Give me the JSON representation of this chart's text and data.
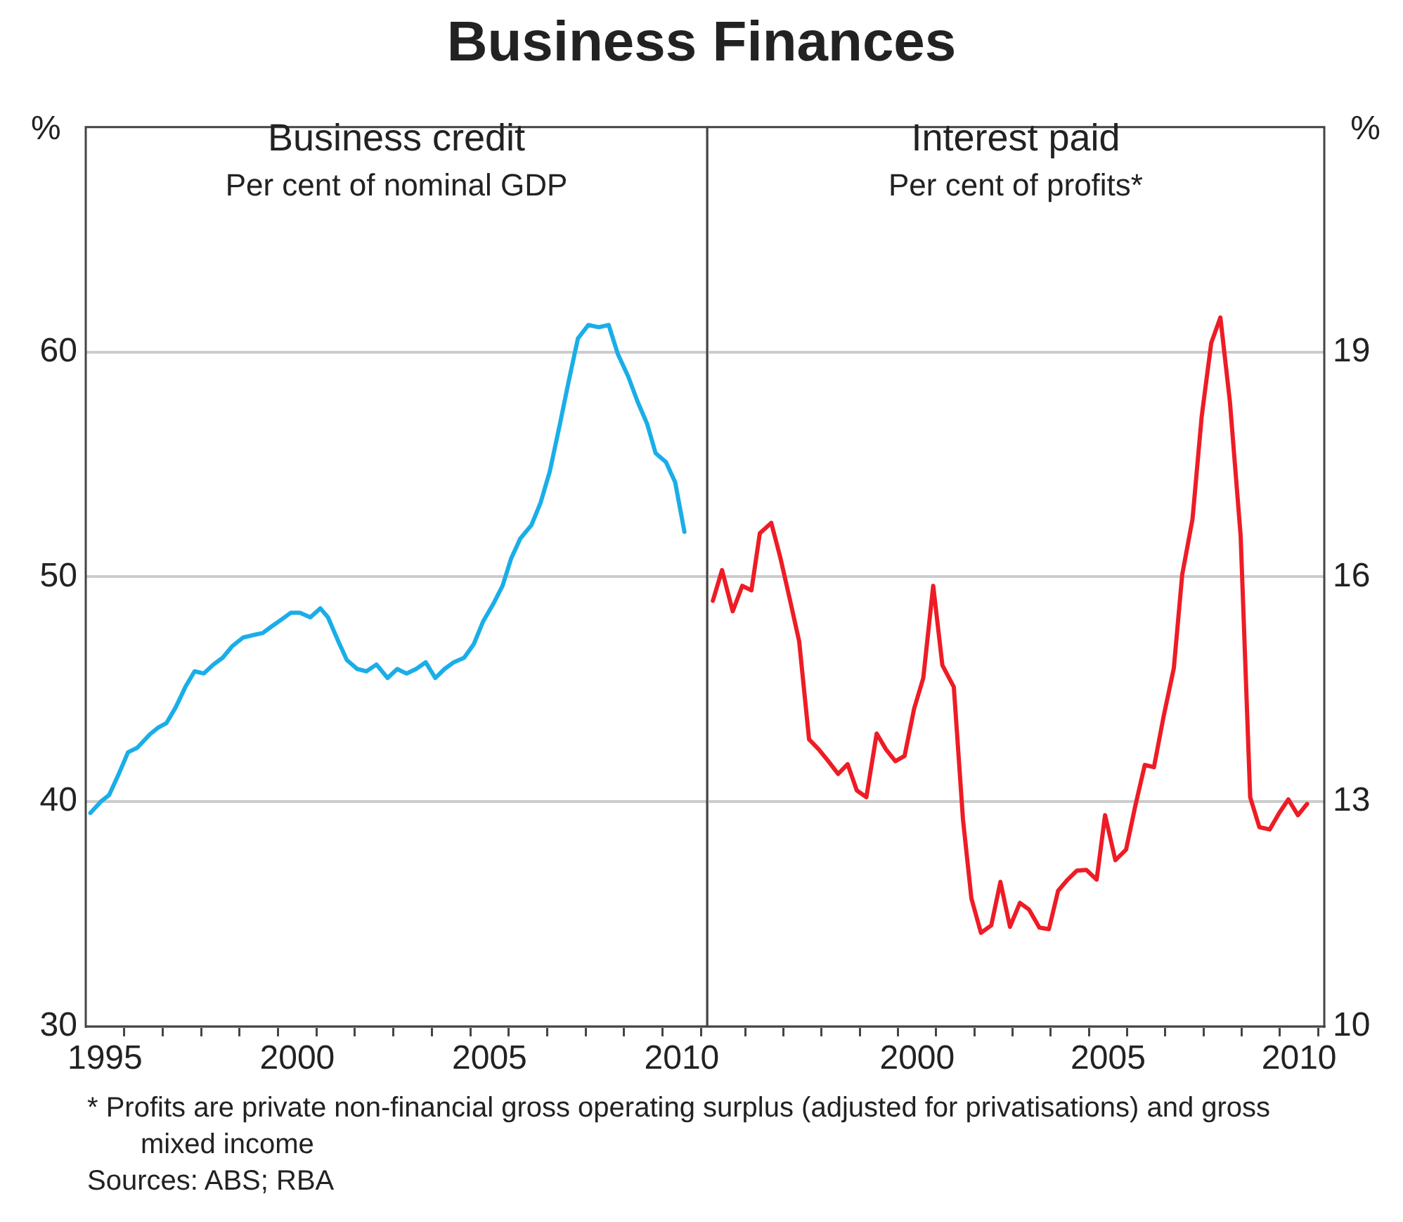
{
  "chart_data": [
    {
      "type": "line",
      "title": "Business credit",
      "subtitle": "Per cent of nominal GDP",
      "ylabel": "%",
      "annotations": [
        "Business Finances"
      ],
      "x": [
        1995.12,
        1995.39,
        1995.61,
        1995.85,
        1996.1,
        1996.34,
        1996.67,
        1996.89,
        1997.1,
        1997.34,
        1997.59,
        1997.83,
        1998.07,
        1998.32,
        1998.56,
        1998.8,
        1999.09,
        1999.33,
        1999.6,
        1999.84,
        2000.09,
        2000.33,
        2000.57,
        2000.84,
        2001.1,
        2001.3,
        2001.55,
        2001.79,
        2002.06,
        2002.3,
        2002.56,
        2002.85,
        2003.1,
        2003.34,
        2003.59,
        2003.84,
        2004.09,
        2004.33,
        2004.57,
        2004.84,
        2005.09,
        2005.33,
        2005.6,
        2005.84,
        2006.06,
        2006.3,
        2006.59,
        2006.83,
        2007.07,
        2007.32,
        2007.56,
        2007.8,
        2008.07,
        2008.34,
        2008.6,
        2008.84,
        2009.11,
        2009.35,
        2009.6,
        2009.82,
        2010.09,
        2010.33,
        2010.57
      ],
      "series": [
        {
          "color": "#1aaee8",
          "values": [
            39.5,
            40.0,
            40.3,
            41.2,
            42.2,
            42.4,
            43.0,
            43.3,
            43.5,
            44.2,
            45.1,
            45.8,
            45.7,
            46.1,
            46.4,
            46.9,
            47.3,
            47.4,
            47.5,
            47.8,
            48.1,
            48.4,
            48.4,
            48.2,
            48.6,
            48.2,
            47.2,
            46.3,
            45.9,
            45.8,
            46.1,
            45.5,
            45.9,
            45.7,
            45.9,
            46.2,
            45.5,
            45.9,
            46.2,
            46.4,
            47.0,
            48.0,
            48.8,
            49.6,
            50.8,
            51.7,
            52.3,
            53.3,
            54.7,
            56.7,
            58.7,
            60.6,
            61.2,
            61.1,
            61.2,
            59.9,
            58.9,
            57.8,
            56.8,
            55.5,
            55.1,
            54.2,
            52.0
          ]
        }
      ],
      "xlim": [
        1995,
        2011.16
      ],
      "xticks": [
        {
          "value": 1995.5,
          "label": "1995"
        },
        {
          "value": 2000.5,
          "label": "2000"
        },
        {
          "value": 2005.5,
          "label": "2005"
        },
        {
          "value": 2010.5,
          "label": "2010"
        },
        {
          "value": 1996,
          "label": null
        },
        {
          "value": 1997,
          "label": null
        },
        {
          "value": 1998,
          "label": null
        },
        {
          "value": 1999,
          "label": null
        },
        {
          "value": 2000,
          "label": null
        },
        {
          "value": 2001,
          "label": null
        },
        {
          "value": 2002,
          "label": null
        },
        {
          "value": 2003,
          "label": null
        },
        {
          "value": 2004,
          "label": null
        },
        {
          "value": 2005,
          "label": null
        },
        {
          "value": 2006,
          "label": null
        },
        {
          "value": 2007,
          "label": null
        },
        {
          "value": 2008,
          "label": null
        },
        {
          "value": 2009,
          "label": null
        },
        {
          "value": 2010,
          "label": null
        },
        {
          "value": 2011,
          "label": null
        }
      ],
      "ylim": [
        30,
        70
      ],
      "yticks": [
        30,
        40,
        50,
        60
      ],
      "grid": "y",
      "legend": false,
      "marker": "none",
      "line_style": "solid"
    },
    {
      "type": "line",
      "title": "Interest paid",
      "subtitle": "Per cent of profits*",
      "ylabel": "%",
      "annotations": [
        "*   Profits are private non-financial gross operating surplus (adjusted for privatisations) and gross mixed income",
        "Sources: ABS; RBA"
      ],
      "x": [
        1995.15,
        1995.39,
        1995.67,
        1995.92,
        1996.16,
        1996.38,
        1996.68,
        1996.92,
        1997.17,
        1997.41,
        1997.67,
        1997.92,
        1998.16,
        1998.43,
        1998.68,
        1998.92,
        1999.17,
        1999.44,
        1999.68,
        1999.93,
        2000.17,
        2000.42,
        2000.66,
        2000.92,
        2001.16,
        2001.46,
        2001.7,
        2001.92,
        2002.17,
        2002.44,
        2002.68,
        2002.93,
        2003.19,
        2003.43,
        2003.7,
        2003.95,
        2004.19,
        2004.44,
        2004.68,
        2004.93,
        2005.2,
        2005.42,
        2005.69,
        2005.97,
        2006.21,
        2006.46,
        2006.7,
        2006.95,
        2007.22,
        2007.44,
        2007.71,
        2007.95,
        2008.2,
        2008.44,
        2008.69,
        2008.97,
        2009.22,
        2009.46,
        2009.73,
        2009.98,
        2010.22,
        2010.47,
        2010.71
      ],
      "series": [
        {
          "color": "#ee1c25",
          "values": [
            15.68,
            16.09,
            15.54,
            15.88,
            15.82,
            16.58,
            16.72,
            16.25,
            15.69,
            15.14,
            13.83,
            13.7,
            13.55,
            13.37,
            13.5,
            13.15,
            13.06,
            13.91,
            13.7,
            13.54,
            13.61,
            14.24,
            14.65,
            15.88,
            14.82,
            14.53,
            12.76,
            11.71,
            11.25,
            11.35,
            11.93,
            11.33,
            11.65,
            11.56,
            11.32,
            11.3,
            11.81,
            11.96,
            12.08,
            12.09,
            11.96,
            12.82,
            12.22,
            12.36,
            12.94,
            13.49,
            13.46,
            14.13,
            14.78,
            16.03,
            16.77,
            18.14,
            19.12,
            19.46,
            18.33,
            16.55,
            13.06,
            12.66,
            12.63,
            12.85,
            13.03,
            12.82,
            12.97
          ]
        }
      ],
      "xlim": [
        1995,
        2011.16
      ],
      "xticks": [
        {
          "value": 2000.5,
          "label": "2000"
        },
        {
          "value": 2005.5,
          "label": "2005"
        },
        {
          "value": 2010.5,
          "label": "2010"
        },
        {
          "value": 1996,
          "label": null
        },
        {
          "value": 1997,
          "label": null
        },
        {
          "value": 1998,
          "label": null
        },
        {
          "value": 1999,
          "label": null
        },
        {
          "value": 2000,
          "label": null
        },
        {
          "value": 2001,
          "label": null
        },
        {
          "value": 2002,
          "label": null
        },
        {
          "value": 2003,
          "label": null
        },
        {
          "value": 2004,
          "label": null
        },
        {
          "value": 2005,
          "label": null
        },
        {
          "value": 2006,
          "label": null
        },
        {
          "value": 2007,
          "label": null
        },
        {
          "value": 2008,
          "label": null
        },
        {
          "value": 2009,
          "label": null
        },
        {
          "value": 2010,
          "label": null
        },
        {
          "value": 2011,
          "label": null
        }
      ],
      "ylim": [
        10,
        22
      ],
      "yticks": [
        10,
        13,
        16,
        19
      ],
      "grid": "y",
      "legend": false,
      "marker": "none",
      "line_style": "solid"
    }
  ]
}
